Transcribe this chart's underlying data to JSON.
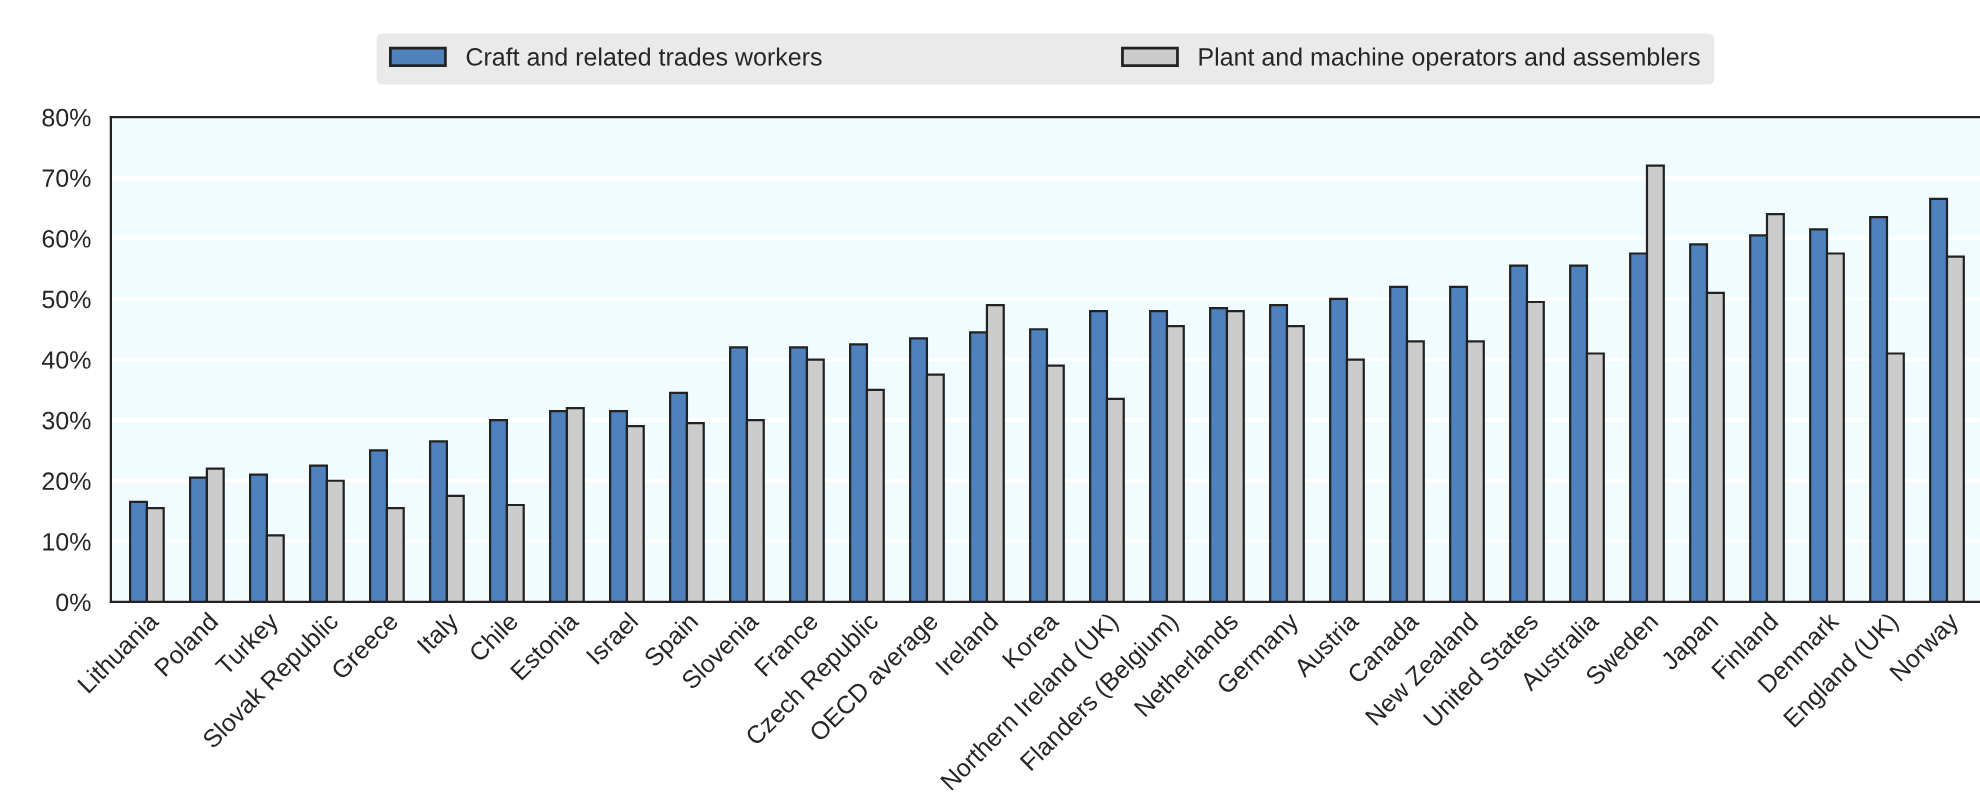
{
  "chart_data": {
    "type": "bar",
    "categories": [
      "Lithuania",
      "Poland",
      "Turkey",
      "Slovak Republic",
      "Greece",
      "Italy",
      "Chile",
      "Estonia",
      "Israel",
      "Spain",
      "Slovenia",
      "France",
      "Czech Republic",
      "OECD average",
      "Ireland",
      "Korea",
      "Northern Ireland (UK)",
      "Flanders (Belgium)",
      "Netherlands",
      "Germany",
      "Austria",
      "Canada",
      "New Zealand",
      "United States",
      "Australia",
      "Sweden",
      "Japan",
      "Finland",
      "Denmark",
      "England (UK)",
      "Norway"
    ],
    "series": [
      {
        "name": "Craft and related trades workers",
        "color": "#4f81bd",
        "values": [
          16.5,
          20.5,
          21,
          22.5,
          25,
          26.5,
          30,
          31.5,
          31.5,
          34.5,
          42,
          42,
          42.5,
          43.5,
          44.5,
          45,
          48,
          48,
          48.5,
          49,
          50,
          52,
          52,
          55.5,
          55.5,
          57.5,
          59,
          60.5,
          61.5,
          63.5,
          66.5
        ]
      },
      {
        "name": "Plant and machine operators and assemblers",
        "color": "#cccccc",
        "values": [
          15.5,
          22,
          11,
          20,
          15.5,
          17.5,
          16,
          32,
          29,
          29.5,
          30,
          40,
          35,
          37.5,
          49,
          39,
          33.5,
          45.5,
          48,
          45.5,
          40,
          43,
          43,
          49.5,
          41,
          72,
          51,
          64,
          57.5,
          41,
          57
        ]
      }
    ],
    "ylim": [
      0,
      80
    ],
    "yticks": [
      {
        "value": 0,
        "label": "0%"
      },
      {
        "value": 10,
        "label": "10%"
      },
      {
        "value": 20,
        "label": "20%"
      },
      {
        "value": 30,
        "label": "30%"
      },
      {
        "value": 40,
        "label": "40%"
      },
      {
        "value": 50,
        "label": "50%"
      },
      {
        "value": 60,
        "label": "60%"
      },
      {
        "value": 70,
        "label": "70%"
      },
      {
        "value": 80,
        "label": "80%"
      }
    ],
    "grid": "y",
    "legend": "top"
  }
}
